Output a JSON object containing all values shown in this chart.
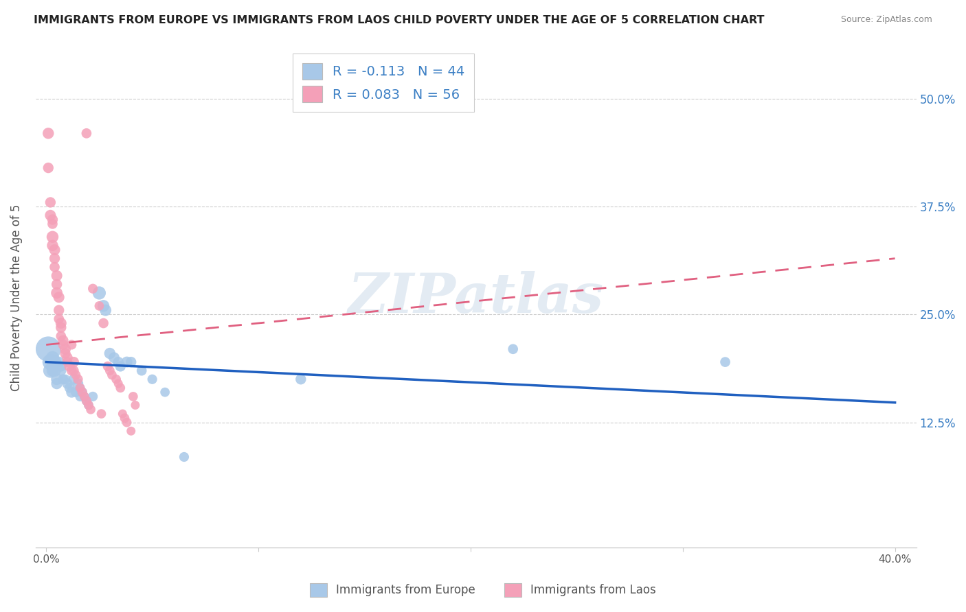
{
  "title": "IMMIGRANTS FROM EUROPE VS IMMIGRANTS FROM LAOS CHILD POVERTY UNDER THE AGE OF 5 CORRELATION CHART",
  "source": "Source: ZipAtlas.com",
  "ylabel": "Child Poverty Under the Age of 5",
  "yticks": [
    0.125,
    0.25,
    0.375,
    0.5
  ],
  "ytick_labels": [
    "12.5%",
    "25.0%",
    "37.5%",
    "50.0%"
  ],
  "legend_label1": "Immigrants from Europe",
  "legend_label2": "Immigrants from Laos",
  "color_europe": "#a8c8e8",
  "color_laos": "#f4a0b8",
  "color_europe_line": "#2060c0",
  "color_laos_line": "#e06080",
  "background_color": "#ffffff",
  "watermark": "ZIPatlas",
  "europe_line": [
    0.0,
    0.195,
    0.4,
    0.148
  ],
  "laos_line": [
    0.0,
    0.215,
    0.4,
    0.315
  ],
  "europe_points": [
    [
      0.001,
      0.21,
      200
    ],
    [
      0.002,
      0.195,
      80
    ],
    [
      0.002,
      0.185,
      65
    ],
    [
      0.003,
      0.2,
      55
    ],
    [
      0.003,
      0.19,
      50
    ],
    [
      0.003,
      0.185,
      45
    ],
    [
      0.004,
      0.195,
      55
    ],
    [
      0.004,
      0.185,
      48
    ],
    [
      0.005,
      0.175,
      42
    ],
    [
      0.005,
      0.17,
      40
    ],
    [
      0.006,
      0.195,
      38
    ],
    [
      0.007,
      0.19,
      35
    ],
    [
      0.007,
      0.185,
      35
    ],
    [
      0.008,
      0.175,
      32
    ],
    [
      0.009,
      0.175,
      30
    ],
    [
      0.01,
      0.17,
      35
    ],
    [
      0.011,
      0.165,
      32
    ],
    [
      0.012,
      0.16,
      38
    ],
    [
      0.013,
      0.175,
      35
    ],
    [
      0.014,
      0.16,
      32
    ],
    [
      0.015,
      0.17,
      35
    ],
    [
      0.016,
      0.155,
      30
    ],
    [
      0.016,
      0.165,
      28
    ],
    [
      0.017,
      0.16,
      32
    ],
    [
      0.018,
      0.155,
      28
    ],
    [
      0.019,
      0.15,
      30
    ],
    [
      0.02,
      0.145,
      28
    ],
    [
      0.022,
      0.155,
      30
    ],
    [
      0.025,
      0.275,
      55
    ],
    [
      0.027,
      0.26,
      45
    ],
    [
      0.028,
      0.255,
      42
    ],
    [
      0.03,
      0.205,
      40
    ],
    [
      0.032,
      0.2,
      38
    ],
    [
      0.034,
      0.195,
      35
    ],
    [
      0.035,
      0.19,
      35
    ],
    [
      0.038,
      0.195,
      38
    ],
    [
      0.04,
      0.195,
      35
    ],
    [
      0.045,
      0.185,
      32
    ],
    [
      0.05,
      0.175,
      30
    ],
    [
      0.056,
      0.16,
      28
    ],
    [
      0.065,
      0.085,
      30
    ],
    [
      0.12,
      0.175,
      35
    ],
    [
      0.22,
      0.21,
      32
    ],
    [
      0.32,
      0.195,
      32
    ]
  ],
  "laos_points": [
    [
      0.001,
      0.46,
      40
    ],
    [
      0.001,
      0.42,
      35
    ],
    [
      0.002,
      0.38,
      35
    ],
    [
      0.002,
      0.365,
      38
    ],
    [
      0.003,
      0.36,
      35
    ],
    [
      0.003,
      0.355,
      32
    ],
    [
      0.003,
      0.34,
      45
    ],
    [
      0.003,
      0.33,
      40
    ],
    [
      0.004,
      0.325,
      38
    ],
    [
      0.004,
      0.315,
      35
    ],
    [
      0.004,
      0.305,
      32
    ],
    [
      0.005,
      0.295,
      38
    ],
    [
      0.005,
      0.285,
      35
    ],
    [
      0.005,
      0.275,
      42
    ],
    [
      0.006,
      0.27,
      38
    ],
    [
      0.006,
      0.255,
      35
    ],
    [
      0.006,
      0.245,
      32
    ],
    [
      0.007,
      0.24,
      38
    ],
    [
      0.007,
      0.235,
      35
    ],
    [
      0.007,
      0.225,
      32
    ],
    [
      0.008,
      0.22,
      35
    ],
    [
      0.008,
      0.215,
      32
    ],
    [
      0.009,
      0.21,
      38
    ],
    [
      0.009,
      0.205,
      35
    ],
    [
      0.01,
      0.2,
      35
    ],
    [
      0.01,
      0.195,
      32
    ],
    [
      0.011,
      0.19,
      35
    ],
    [
      0.012,
      0.215,
      30
    ],
    [
      0.012,
      0.185,
      32
    ],
    [
      0.013,
      0.195,
      35
    ],
    [
      0.013,
      0.185,
      32
    ],
    [
      0.014,
      0.18,
      28
    ],
    [
      0.015,
      0.175,
      30
    ],
    [
      0.016,
      0.165,
      28
    ],
    [
      0.017,
      0.16,
      30
    ],
    [
      0.018,
      0.155,
      28
    ],
    [
      0.019,
      0.15,
      30
    ],
    [
      0.019,
      0.46,
      32
    ],
    [
      0.02,
      0.145,
      28
    ],
    [
      0.021,
      0.14,
      28
    ],
    [
      0.022,
      0.28,
      30
    ],
    [
      0.025,
      0.26,
      28
    ],
    [
      0.026,
      0.135,
      28
    ],
    [
      0.027,
      0.24,
      32
    ],
    [
      0.029,
      0.19,
      30
    ],
    [
      0.03,
      0.185,
      28
    ],
    [
      0.031,
      0.18,
      28
    ],
    [
      0.033,
      0.175,
      28
    ],
    [
      0.034,
      0.17,
      25
    ],
    [
      0.035,
      0.165,
      28
    ],
    [
      0.036,
      0.135,
      25
    ],
    [
      0.037,
      0.13,
      28
    ],
    [
      0.038,
      0.125,
      28
    ],
    [
      0.04,
      0.115,
      25
    ],
    [
      0.041,
      0.155,
      28
    ],
    [
      0.042,
      0.145,
      25
    ]
  ]
}
